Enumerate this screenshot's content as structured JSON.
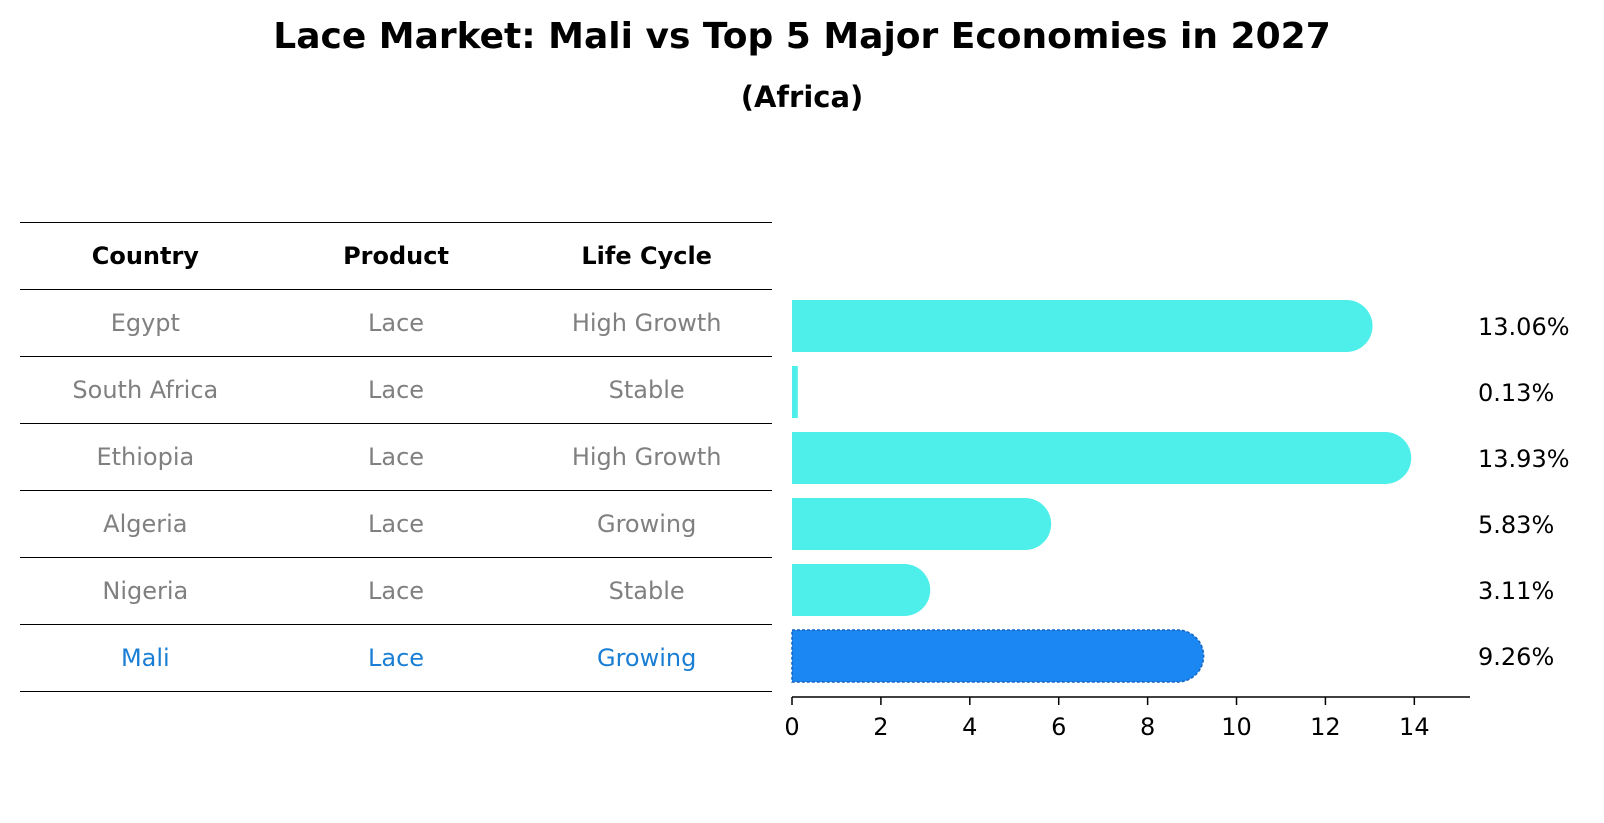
{
  "title": "Lace Market: Mali vs Top 5 Major Economies in 2027",
  "subtitle": "(Africa)",
  "table": {
    "headers": [
      "Country",
      "Product",
      "Life Cycle"
    ],
    "rows": [
      [
        "Egypt",
        "Lace",
        "High Growth"
      ],
      [
        "South Africa",
        "Lace",
        "Stable"
      ],
      [
        "Ethiopia",
        "Lace",
        "High Growth"
      ],
      [
        "Algeria",
        "Lace",
        "Growing"
      ],
      [
        "Nigeria",
        "Lace",
        "Stable"
      ],
      [
        "Mali",
        "Lace",
        "Growing"
      ]
    ]
  },
  "colors": {
    "bar": "#4eeeea",
    "highlight": "#1a87f2",
    "highlight_text": "#1a7fd4"
  },
  "chart_data": {
    "type": "bar",
    "orientation": "horizontal",
    "title": "Lace Market: Mali vs Top 5 Major Economies in 2027",
    "subtitle": "(Africa)",
    "categories": [
      "Egypt",
      "South Africa",
      "Ethiopia",
      "Algeria",
      "Nigeria",
      "Mali"
    ],
    "values": [
      13.06,
      0.13,
      13.93,
      5.83,
      3.11,
      9.26
    ],
    "value_labels": [
      "13.06%",
      "0.13%",
      "13.93%",
      "5.83%",
      "3.11%",
      "9.26%"
    ],
    "highlight": "Mali",
    "xlim": [
      0,
      14.6
    ],
    "xticks": [
      0,
      2,
      4,
      6,
      8,
      10,
      12,
      14
    ],
    "xtick_labels": [
      "0",
      "2",
      "4",
      "6",
      "8",
      "10",
      "12",
      "14"
    ],
    "xlabel": "",
    "ylabel": "",
    "grid": false
  }
}
